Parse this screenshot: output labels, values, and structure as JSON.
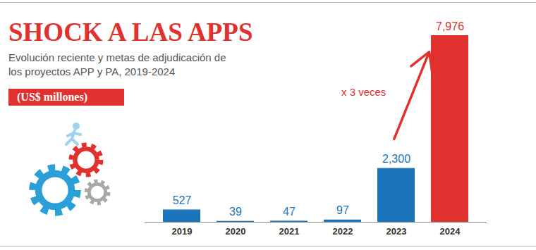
{
  "chart_data": {
    "type": "bar",
    "title": "SHOCK A LAS APPS",
    "subtitle": "Evolución reciente y metas de adjudicación de los proyectos APP y PA, 2019-2024",
    "y_label": "(US$ millones)",
    "categories": [
      "2019",
      "2020",
      "2021",
      "2022",
      "2023",
      "2024"
    ],
    "values": [
      527,
      39,
      47,
      97,
      2300,
      7976
    ],
    "value_labels": [
      "527",
      "39",
      "47",
      "97",
      "2,300",
      "7,976"
    ],
    "colors": [
      "#1b75bc",
      "#1b75bc",
      "#1b75bc",
      "#1b75bc",
      "#1b75bc",
      "#e0312e"
    ],
    "annotations": [
      "x 3 veces"
    ],
    "ylim": [
      0,
      7976
    ],
    "yticks": [],
    "grid": false,
    "data_labels": true,
    "tick_labels": "x"
  }
}
